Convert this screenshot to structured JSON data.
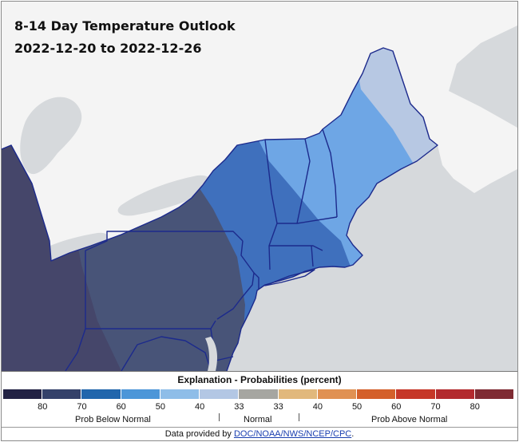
{
  "map": {
    "title": "8-14 Day Temperature Outlook",
    "date_range": "2022-12-20 to 2022-12-26",
    "region": "Northeastern United States",
    "colors": {
      "water": "#d6d9dc",
      "land_outside": "#f4f4f4",
      "state_border": "#1c2a8c"
    },
    "zones": [
      {
        "category": "Below Normal",
        "probability": "70",
        "color": "#45466a"
      },
      {
        "category": "Below Normal",
        "probability": "60",
        "color": "#485478"
      },
      {
        "category": "Below Normal",
        "probability": "50",
        "color": "#3f70bd"
      },
      {
        "category": "Below Normal",
        "probability": "40",
        "color": "#6ea6e5"
      },
      {
        "category": "Below Normal",
        "probability": "33",
        "color": "#b7c8e3"
      }
    ]
  },
  "legend": {
    "title": "Explanation - Probabilities (percent)",
    "swatches": [
      {
        "color": "#222244"
      },
      {
        "color": "#34416a"
      },
      {
        "color": "#2166ac"
      },
      {
        "color": "#4c96d8"
      },
      {
        "color": "#8ebde8"
      },
      {
        "color": "#b3c7e4"
      },
      {
        "color": "#a6a6a1"
      },
      {
        "color": "#e1b87c"
      },
      {
        "color": "#e09153"
      },
      {
        "color": "#d4602a"
      },
      {
        "color": "#c63728"
      },
      {
        "color": "#b32a2e"
      },
      {
        "color": "#7f2b33"
      }
    ],
    "tick_labels": [
      "80",
      "70",
      "60",
      "50",
      "40",
      "33",
      "33",
      "40",
      "50",
      "60",
      "70",
      "80"
    ],
    "categories": {
      "below": "Prob Below Normal",
      "normal": "Normal",
      "above": "Prob Above Normal"
    }
  },
  "footer": {
    "prefix": "Data provided by",
    "link": "DOC/NOAA/NWS/NCEP/CPC",
    "suffix": "."
  }
}
